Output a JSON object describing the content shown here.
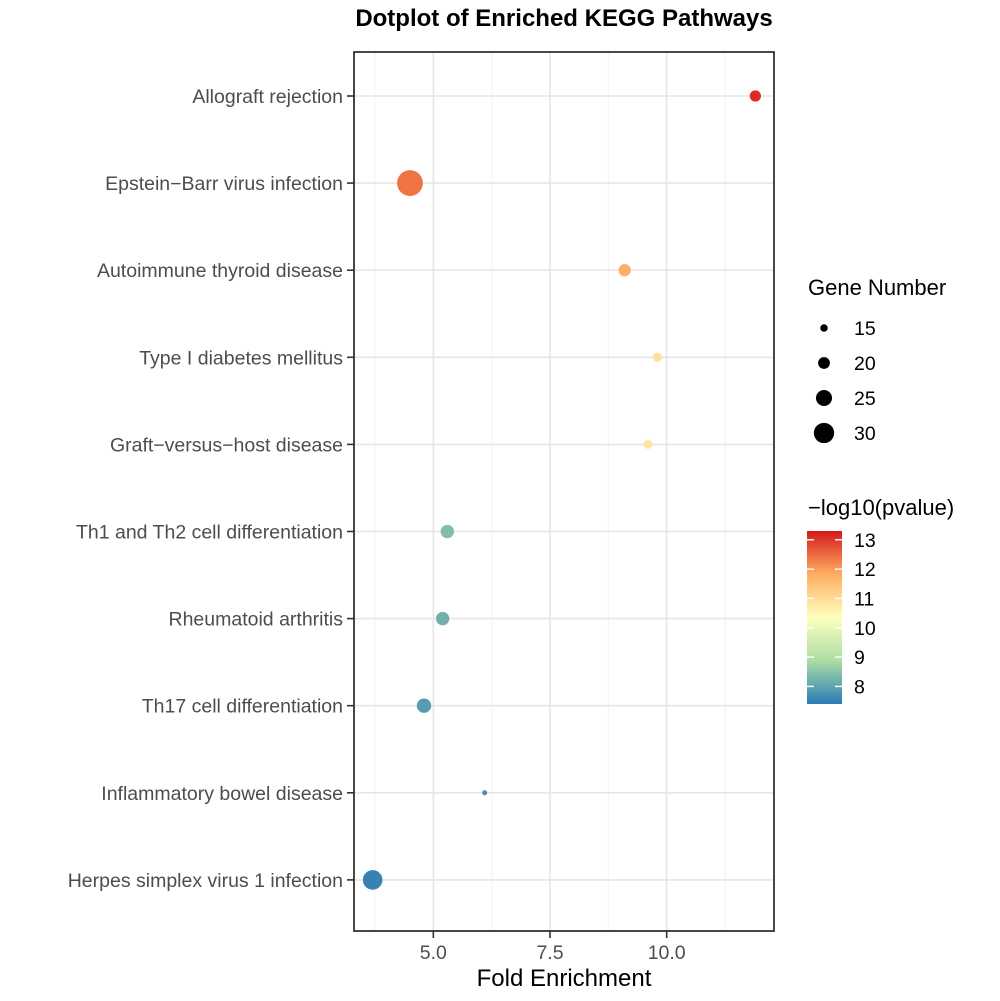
{
  "chart_data": {
    "type": "scatter",
    "title": "Dotplot of Enriched KEGG Pathways",
    "xlabel": "Fold Enrichment",
    "ylabel": "",
    "xlim": [
      3.3,
      12.3
    ],
    "x_ticks": [
      5.0,
      7.5,
      10.0
    ],
    "x_tick_labels": [
      "5.0",
      "7.5",
      "10.0"
    ],
    "grid": true,
    "categories": [
      "Allograft rejection",
      "Epstein−Barr virus infection",
      "Autoimmune thyroid disease",
      "Type I diabetes mellitus",
      "Graft−versus−host disease",
      "Th1 and Th2 cell differentiation",
      "Rheumatoid arthritis",
      "Th17 cell differentiation",
      "Inflammatory bowel disease",
      "Herpes simplex virus 1 infection"
    ],
    "points": [
      {
        "category": "Allograft rejection",
        "x": 11.9,
        "gene_number": 17,
        "neg_log10_pvalue": 13.1
      },
      {
        "category": "Epstein−Barr virus infection",
        "x": 4.5,
        "gene_number": 31,
        "neg_log10_pvalue": 12.4
      },
      {
        "category": "Autoimmune thyroid disease",
        "x": 9.1,
        "gene_number": 18,
        "neg_log10_pvalue": 11.8
      },
      {
        "category": "Type I diabetes mellitus",
        "x": 9.8,
        "gene_number": 15,
        "neg_log10_pvalue": 10.9
      },
      {
        "category": "Graft−versus−host disease",
        "x": 9.6,
        "gene_number": 15,
        "neg_log10_pvalue": 10.8
      },
      {
        "category": "Th1 and Th2 cell differentiation",
        "x": 5.3,
        "gene_number": 19,
        "neg_log10_pvalue": 8.4
      },
      {
        "category": "Rheumatoid arthritis",
        "x": 5.2,
        "gene_number": 19,
        "neg_log10_pvalue": 8.2
      },
      {
        "category": "Th17 cell differentiation",
        "x": 4.8,
        "gene_number": 20,
        "neg_log10_pvalue": 7.9
      },
      {
        "category": "Inflammatory bowel disease",
        "x": 6.1,
        "gene_number": 11,
        "neg_log10_pvalue": 7.7
      },
      {
        "category": "Herpes simplex virus 1 infection",
        "x": 3.7,
        "gene_number": 25,
        "neg_log10_pvalue": 7.5
      }
    ],
    "size_legend": {
      "title": "Gene Number",
      "values": [
        15,
        20,
        25,
        30
      ],
      "labels": [
        "15",
        "20",
        "25",
        "30"
      ]
    },
    "color_legend": {
      "title": "−log10(pvalue)",
      "range": [
        7.4,
        13.3
      ],
      "ticks": [
        13,
        12,
        11,
        10,
        9,
        8
      ],
      "tick_labels": [
        "13",
        "12",
        "11",
        "10",
        "9",
        "8"
      ],
      "colors": [
        "#2c7bb6",
        "#abdda4",
        "#ffffbf",
        "#fdae61",
        "#d7191c"
      ]
    }
  }
}
